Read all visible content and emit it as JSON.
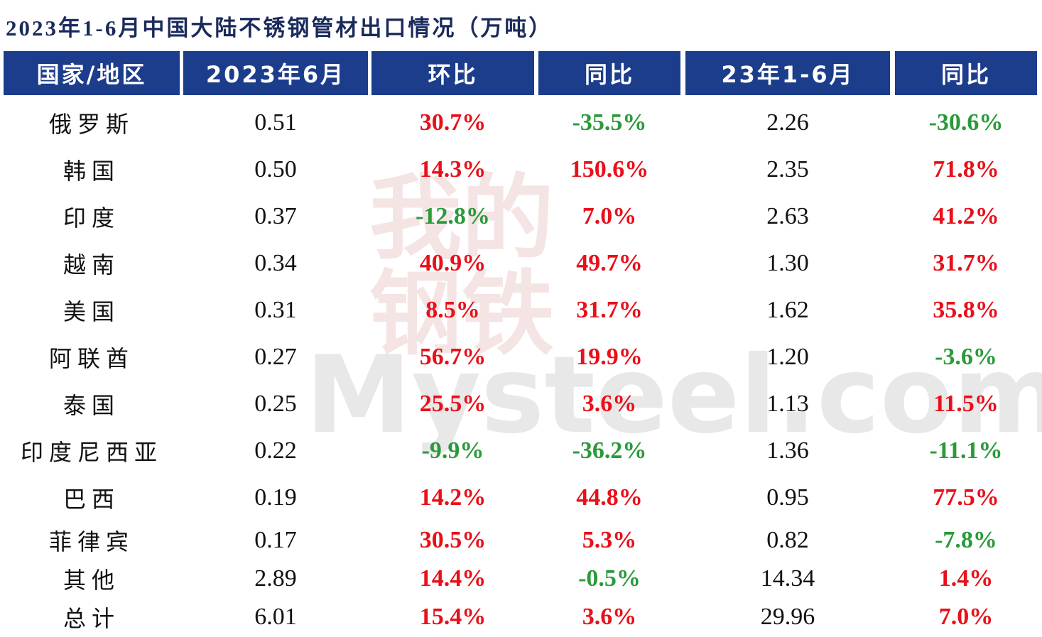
{
  "title": "2023年1-6月中国大陆不锈钢管材出口情况（万吨）",
  "watermark": {
    "mark": "我的钢铁",
    "site": "Mysteel.com"
  },
  "table": {
    "header": [
      "国家/地区",
      "2023年6月",
      "环比",
      "同比",
      "23年1-6月",
      "同比"
    ],
    "rows": [
      [
        "俄罗斯",
        "0.51",
        "30.7%",
        "-35.5%",
        "2.26",
        "-30.6%"
      ],
      [
        "韩国",
        "0.50",
        "14.3%",
        "150.6%",
        "2.35",
        "71.8%"
      ],
      [
        "印度",
        "0.37",
        "-12.8%",
        "7.0%",
        "2.63",
        "41.2%"
      ],
      [
        "越南",
        "0.34",
        "40.9%",
        "49.7%",
        "1.30",
        "31.7%"
      ],
      [
        "美国",
        "0.31",
        "8.5%",
        "31.7%",
        "1.62",
        "35.8%"
      ],
      [
        "阿联酋",
        "0.27",
        "56.7%",
        "19.9%",
        "1.20",
        "-3.6%"
      ],
      [
        "泰国",
        "0.25",
        "25.5%",
        "3.6%",
        "1.13",
        "11.5%"
      ],
      [
        "印度尼西亚",
        "0.22",
        "-9.9%",
        "-36.2%",
        "1.36",
        "-11.1%"
      ],
      [
        "巴西",
        "0.19",
        "14.2%",
        "44.8%",
        "0.95",
        "77.5%"
      ],
      [
        "菲律宾",
        "0.17",
        "30.5%",
        "5.3%",
        "0.82",
        "-7.8%"
      ],
      [
        "其他",
        "2.89",
        "14.4%",
        "-0.5%",
        "14.34",
        "1.4%"
      ],
      [
        "总计",
        "6.01",
        "15.4%",
        "3.6%",
        "29.96",
        "7.0%"
      ]
    ]
  }
}
